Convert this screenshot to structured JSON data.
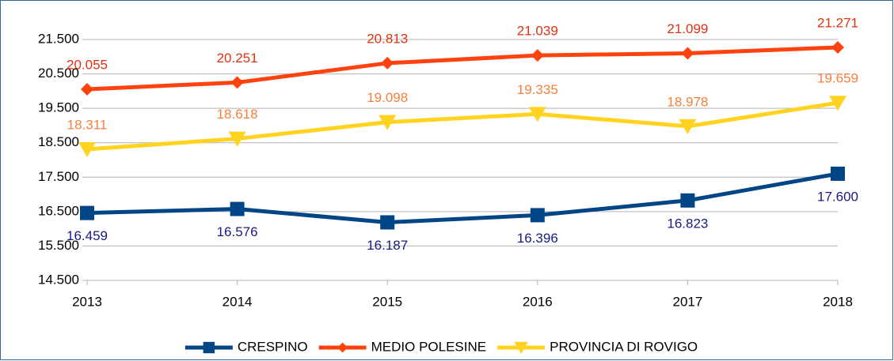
{
  "chart_data": {
    "type": "line",
    "categories": [
      "2013",
      "2014",
      "2015",
      "2016",
      "2017",
      "2018"
    ],
    "ylim": [
      14500,
      21500
    ],
    "yticks": [
      {
        "value": 14500,
        "label": "14.500"
      },
      {
        "value": 15500,
        "label": "15.500"
      },
      {
        "value": 16500,
        "label": "16.500"
      },
      {
        "value": 17500,
        "label": "17.500"
      },
      {
        "value": 18500,
        "label": "18.500"
      },
      {
        "value": 19500,
        "label": "19.500"
      },
      {
        "value": 20500,
        "label": "20.500"
      },
      {
        "value": 21500,
        "label": "21.500"
      }
    ],
    "grid": true,
    "legend": "bottom",
    "series": [
      {
        "name": "CRESPINO",
        "color": "#004586",
        "label_color": "#1a1a80",
        "marker": "square",
        "label_position": "below",
        "values": [
          16459,
          16576,
          16187,
          16396,
          16823,
          17600
        ],
        "value_labels": [
          "16.459",
          "16.576",
          "16.187",
          "16.396",
          "16.823",
          "17.600"
        ]
      },
      {
        "name": "MEDIO POLESINE",
        "color": "#ff420e",
        "label_color": "#dd3311",
        "marker": "diamond",
        "label_position": "above",
        "values": [
          20055,
          20251,
          20813,
          21039,
          21099,
          21271
        ],
        "value_labels": [
          "20.055",
          "20.251",
          "20.813",
          "21.039",
          "21.099",
          "21.271"
        ]
      },
      {
        "name": "PROVINCIA DI ROVIGO",
        "color": "#ffd320",
        "label_color": "#f5813d",
        "marker": "triangle-down",
        "label_position": "above",
        "values": [
          18311,
          18618,
          19098,
          19335,
          18978,
          19659
        ],
        "value_labels": [
          "18.311",
          "18.618",
          "19.098",
          "19.335",
          "18.978",
          "19.659"
        ]
      }
    ]
  }
}
